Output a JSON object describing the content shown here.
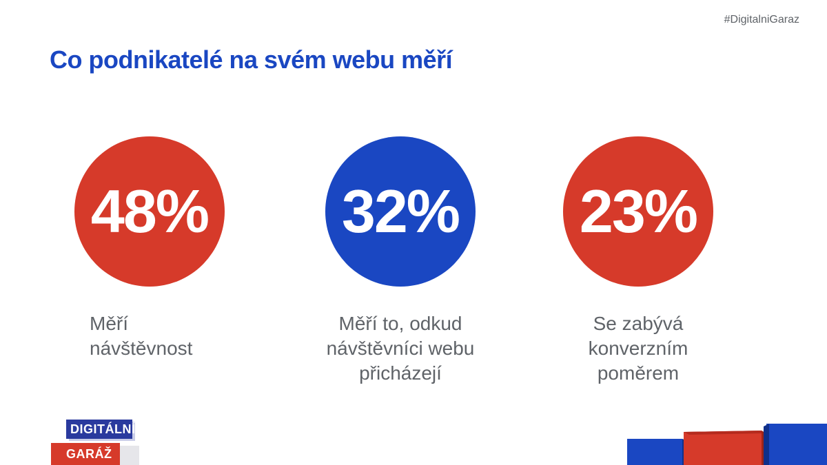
{
  "hashtag": "#DigitalniGaraz",
  "title": "Co podnikatelé na svém webu měří",
  "stats": [
    {
      "value": "48%",
      "color": "#d63a2a",
      "lines": [
        "Měří",
        "návštěvnost"
      ]
    },
    {
      "value": "32%",
      "color": "#1a47c2",
      "lines": [
        "Měří to, odkud",
        "návštěvníci webu",
        "přicházejí"
      ]
    },
    {
      "value": "23%",
      "color": "#d63a2a",
      "lines": [
        "Se zabývá",
        "konverzním",
        "poměrem"
      ]
    }
  ],
  "logo": {
    "line1": "DIGITÁLNÍ",
    "line2": "GARÁŽ"
  },
  "colors": {
    "accent_blue": "#1a47c2",
    "accent_red": "#d63a2a",
    "text_gray": "#5f6368"
  }
}
